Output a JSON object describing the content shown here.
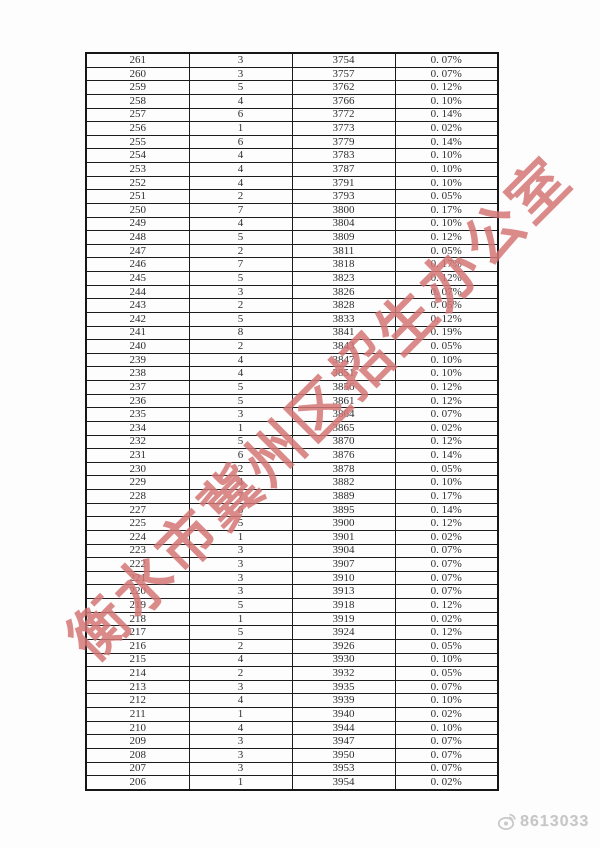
{
  "table": {
    "rows": [
      [
        "261",
        "3",
        "3754",
        "0. 07%"
      ],
      [
        "260",
        "3",
        "3757",
        "0. 07%"
      ],
      [
        "259",
        "5",
        "3762",
        "0. 12%"
      ],
      [
        "258",
        "4",
        "3766",
        "0. 10%"
      ],
      [
        "257",
        "6",
        "3772",
        "0. 14%"
      ],
      [
        "256",
        "1",
        "3773",
        "0. 02%"
      ],
      [
        "255",
        "6",
        "3779",
        "0. 14%"
      ],
      [
        "254",
        "4",
        "3783",
        "0. 10%"
      ],
      [
        "253",
        "4",
        "3787",
        "0. 10%"
      ],
      [
        "252",
        "4",
        "3791",
        "0. 10%"
      ],
      [
        "251",
        "2",
        "3793",
        "0. 05%"
      ],
      [
        "250",
        "7",
        "3800",
        "0. 17%"
      ],
      [
        "249",
        "4",
        "3804",
        "0. 10%"
      ],
      [
        "248",
        "5",
        "3809",
        "0. 12%"
      ],
      [
        "247",
        "2",
        "3811",
        "0. 05%"
      ],
      [
        "246",
        "7",
        "3818",
        "0. 17%"
      ],
      [
        "245",
        "5",
        "3823",
        "0. 12%"
      ],
      [
        "244",
        "3",
        "3826",
        "0. 07%"
      ],
      [
        "243",
        "2",
        "3828",
        "0. 05%"
      ],
      [
        "242",
        "5",
        "3833",
        "0. 12%"
      ],
      [
        "241",
        "8",
        "3841",
        "0. 19%"
      ],
      [
        "240",
        "2",
        "3843",
        "0. 05%"
      ],
      [
        "239",
        "4",
        "3847",
        "0. 10%"
      ],
      [
        "238",
        "4",
        "3851",
        "0. 10%"
      ],
      [
        "237",
        "5",
        "3856",
        "0. 12%"
      ],
      [
        "236",
        "5",
        "3861",
        "0. 12%"
      ],
      [
        "235",
        "3",
        "3864",
        "0. 07%"
      ],
      [
        "234",
        "1",
        "3865",
        "0. 02%"
      ],
      [
        "232",
        "5",
        "3870",
        "0. 12%"
      ],
      [
        "231",
        "6",
        "3876",
        "0. 14%"
      ],
      [
        "230",
        "2",
        "3878",
        "0. 05%"
      ],
      [
        "229",
        "4",
        "3882",
        "0. 10%"
      ],
      [
        "228",
        "7",
        "3889",
        "0. 17%"
      ],
      [
        "227",
        "6",
        "3895",
        "0. 14%"
      ],
      [
        "225",
        "5",
        "3900",
        "0. 12%"
      ],
      [
        "224",
        "1",
        "3901",
        "0. 02%"
      ],
      [
        "223",
        "3",
        "3904",
        "0. 07%"
      ],
      [
        "222",
        "3",
        "3907",
        "0. 07%"
      ],
      [
        "221",
        "3",
        "3910",
        "0. 07%"
      ],
      [
        "220",
        "3",
        "3913",
        "0. 07%"
      ],
      [
        "219",
        "5",
        "3918",
        "0. 12%"
      ],
      [
        "218",
        "1",
        "3919",
        "0. 02%"
      ],
      [
        "217",
        "5",
        "3924",
        "0. 12%"
      ],
      [
        "216",
        "2",
        "3926",
        "0. 05%"
      ],
      [
        "215",
        "4",
        "3930",
        "0. 10%"
      ],
      [
        "214",
        "2",
        "3932",
        "0. 05%"
      ],
      [
        "213",
        "3",
        "3935",
        "0. 07%"
      ],
      [
        "212",
        "4",
        "3939",
        "0. 10%"
      ],
      [
        "211",
        "1",
        "3940",
        "0. 02%"
      ],
      [
        "210",
        "4",
        "3944",
        "0. 10%"
      ],
      [
        "209",
        "3",
        "3947",
        "0. 07%"
      ],
      [
        "208",
        "3",
        "3950",
        "0. 07%"
      ],
      [
        "207",
        "3",
        "3953",
        "0. 07%"
      ],
      [
        "206",
        "1",
        "3954",
        "0. 02%"
      ]
    ]
  },
  "watermark": {
    "text": "衡水市冀州区招生办公室",
    "color": "#c54949"
  },
  "footer": {
    "account_id": "8613033",
    "logo": "weibo-icon",
    "color": "#c6c6c6"
  }
}
